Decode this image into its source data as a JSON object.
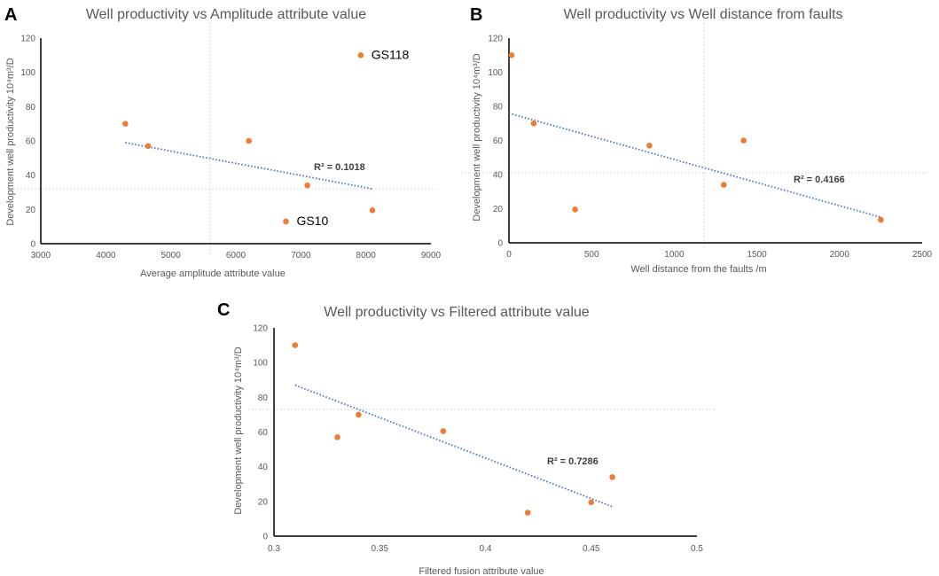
{
  "colors": {
    "point": "#ED7D31",
    "trend": "#4472C4",
    "axis": "#000000",
    "crosshair": "#D9D9D9",
    "text": "#595959"
  },
  "chart_data": [
    {
      "panel": "A",
      "type": "scatter",
      "title": "Well productivity vs Amplitude attribute value",
      "xlabel": "Average amplitude attribute value",
      "ylabel": "Development well productivity 10⁴m³/D",
      "xlim": [
        3000,
        9000
      ],
      "ylim": [
        0,
        120
      ],
      "xticks": [
        "3000",
        "4000",
        "5000",
        "6000",
        "7000",
        "8000",
        "9000"
      ],
      "yticks": [
        "0",
        "20",
        "40",
        "60",
        "80",
        "100",
        "120"
      ],
      "points": [
        {
          "x": 4300,
          "y": 70
        },
        {
          "x": 4650,
          "y": 57
        },
        {
          "x": 6200,
          "y": 60
        },
        {
          "x": 7100,
          "y": 34
        },
        {
          "x": 8100,
          "y": 19.5
        },
        {
          "x": 6770,
          "y": 13,
          "label": "GS10"
        },
        {
          "x": 7920,
          "y": 110,
          "label": "GS118"
        }
      ],
      "trendline": {
        "x": [
          4300,
          8100
        ],
        "y": [
          59,
          32
        ]
      },
      "r2": "R² = 0.1018",
      "crosshair": {
        "x": 5600,
        "y": 32
      }
    },
    {
      "panel": "B",
      "type": "scatter",
      "title": "Well productivity vs Well distance from faults",
      "xlabel": "Well distance from the faults /m",
      "ylabel": "Development well productivity 10⁴m³/D",
      "xlim": [
        0,
        2500
      ],
      "ylim": [
        0,
        120
      ],
      "xticks": [
        "0",
        "500",
        "1000",
        "1500",
        "2000",
        "2500"
      ],
      "yticks": [
        "0",
        "20",
        "40",
        "60",
        "80",
        "100",
        "120"
      ],
      "points": [
        {
          "x": 0,
          "y": 110
        },
        {
          "x": 150,
          "y": 70
        },
        {
          "x": 400,
          "y": 19.5
        },
        {
          "x": 850,
          "y": 57
        },
        {
          "x": 1300,
          "y": 34
        },
        {
          "x": 1420,
          "y": 60
        },
        {
          "x": 2250,
          "y": 13.5
        }
      ],
      "trendline": {
        "x": [
          0,
          2250
        ],
        "y": [
          76,
          15
        ]
      },
      "r2": "R² = 0.4166",
      "crosshair": {
        "x": 1180,
        "y": 41
      }
    },
    {
      "panel": "C",
      "type": "scatter",
      "title": "Well productivity vs Filtered attribute value",
      "xlabel": "Filtered fusion attribute value",
      "ylabel": "Development well productivity 10⁴m³/D",
      "xlim": [
        0.3,
        0.5
      ],
      "ylim": [
        0,
        120
      ],
      "xticks": [
        "0.3",
        "0.35",
        "0.4",
        "0.45",
        "0.5"
      ],
      "yticks": [
        "0",
        "20",
        "40",
        "60",
        "80",
        "100",
        "120"
      ],
      "points": [
        {
          "x": 0.31,
          "y": 110
        },
        {
          "x": 0.33,
          "y": 57
        },
        {
          "x": 0.34,
          "y": 70
        },
        {
          "x": 0.38,
          "y": 60.5
        },
        {
          "x": 0.42,
          "y": 13.5
        },
        {
          "x": 0.45,
          "y": 19.5
        },
        {
          "x": 0.46,
          "y": 34
        }
      ],
      "trendline": {
        "x": [
          0.31,
          0.46
        ],
        "y": [
          87,
          17
        ]
      },
      "r2": "R² = 0.7286",
      "crosshair": {
        "x": null,
        "y": 73
      }
    }
  ]
}
